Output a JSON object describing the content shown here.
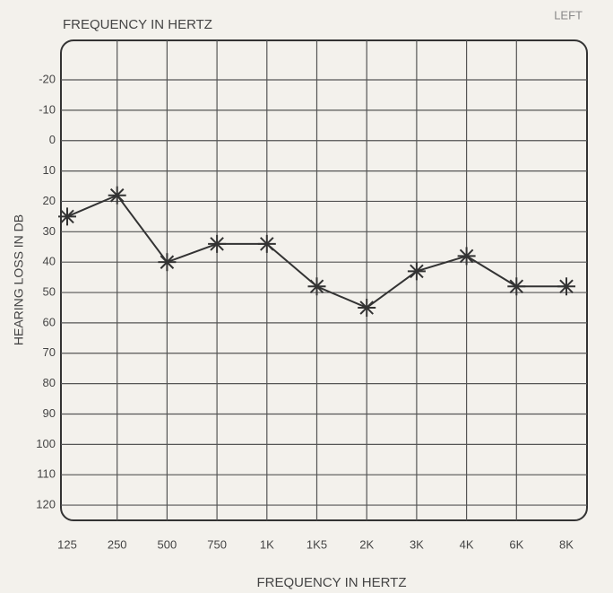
{
  "chart_data": {
    "type": "line",
    "title": "FREQUENCY IN HERTZ",
    "annotation": "LEFT",
    "x_label": "FREQUENCY IN HERTZ",
    "y_label": "HEARING LOSS IN DB",
    "categories": [
      "125",
      "250",
      "500",
      "750",
      "1K",
      "1K5",
      "2K",
      "3K",
      "4K",
      "6K",
      "8K"
    ],
    "series": [
      {
        "name": "LEFT",
        "color": "#333333",
        "values": [
          25,
          18,
          40,
          34,
          34,
          48,
          55,
          43,
          38,
          48,
          48
        ]
      }
    ],
    "ylim": [
      -33,
      125
    ],
    "yticks": [
      -20,
      -10,
      0,
      10,
      20,
      30,
      40,
      50,
      60,
      70,
      80,
      90,
      100,
      110,
      120
    ],
    "y_inverted": true,
    "grid": true
  }
}
